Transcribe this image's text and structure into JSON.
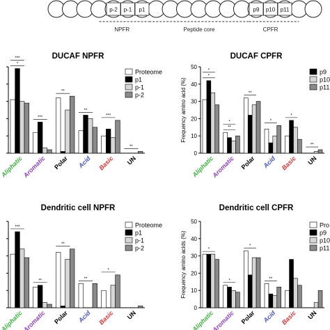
{
  "diagram": {
    "cells": [
      "",
      "",
      "",
      "",
      "p-2",
      "p-1",
      "p1",
      "",
      "",
      "",
      "",
      "",
      "",
      "",
      "p9",
      "p10",
      "p11",
      "",
      ""
    ],
    "regions": [
      "NPFR",
      "Peptide core",
      "CPFR"
    ]
  },
  "colors": {
    "proteome": "#ffffff",
    "p1": "#000000",
    "pm1": "#d6d6d6",
    "pm2": "#8a8a8a",
    "aliphatic": "#3db13d",
    "aromatic": "#8e3fc0",
    "polar": "#000000",
    "acid": "#4a55c4",
    "basic": "#d63232",
    "un": "#000000"
  },
  "chart_data": [
    {
      "type": "bar",
      "title": "DUCAF NPFR",
      "ylabel": "",
      "ylim": [
        0,
        50
      ],
      "categories": [
        "Aliphatic",
        "Aromatic",
        "Polar",
        "Acid",
        "Basic",
        "UN"
      ],
      "legend": [
        "Proteome",
        "p1",
        "p-1",
        "p-2"
      ],
      "series": [
        {
          "name": "Proteome",
          "values": [
            31,
            12,
            32,
            13,
            10,
            0
          ]
        },
        {
          "name": "p1",
          "values": [
            49,
            18,
            1,
            22,
            14,
            0
          ]
        },
        {
          "name": "p-1",
          "values": [
            30,
            3,
            25,
            20,
            9,
            0
          ]
        },
        {
          "name": "p-2",
          "values": [
            29,
            2,
            33,
            15,
            19,
            1
          ]
        }
      ],
      "annotations": [
        "*",
        "***",
        "**",
        "**",
        "***",
        "**",
        "***"
      ]
    },
    {
      "type": "bar",
      "title": "DUCAF CPFR",
      "ylabel": "Frequency amino acid (%)",
      "ylim": [
        0,
        50
      ],
      "categories": [
        "Aliphatic",
        "Aromatic",
        "Polar",
        "Acid",
        "Basic",
        "UN"
      ],
      "legend": [
        "p9",
        "p10",
        "p11"
      ],
      "series": [
        {
          "name": "Proteome",
          "values": [
            31,
            12,
            32,
            14,
            10,
            0
          ]
        },
        {
          "name": "p9",
          "values": [
            42,
            9,
            22,
            6,
            19,
            0
          ]
        },
        {
          "name": "p10",
          "values": [
            35,
            7,
            28,
            10,
            15,
            1
          ]
        },
        {
          "name": "p11",
          "values": [
            28,
            10,
            30,
            16,
            8,
            2
          ]
        }
      ],
      "annotations": [
        "*",
        "**",
        "**",
        "*",
        "*",
        "**",
        "*",
        "*"
      ]
    },
    {
      "type": "bar",
      "title": "Dendritic cell NPFR",
      "ylabel": "",
      "ylim": [
        0,
        50
      ],
      "categories": [
        "Aliphatic",
        "Aromatic",
        "Polar",
        "Acid",
        "Basic",
        "UN"
      ],
      "legend": [
        "Proteome",
        "p1",
        "p-1",
        "p-2"
      ],
      "series": [
        {
          "name": "Proteome",
          "values": [
            31,
            12,
            32,
            14,
            10,
            0
          ]
        },
        {
          "name": "p1",
          "values": [
            44,
            13,
            1,
            0,
            0,
            0
          ]
        },
        {
          "name": "p-1",
          "values": [
            34,
            3,
            28,
            0,
            13,
            0
          ]
        },
        {
          "name": "p-2",
          "values": [
            29,
            2,
            34,
            14,
            19,
            1
          ]
        }
      ],
      "annotations": [
        "***",
        "**",
        "**",
        "**",
        "*"
      ]
    },
    {
      "type": "bar",
      "title": "Dendritic cell CPFR",
      "ylabel": "Frequency amino acids (%)",
      "ylim": [
        0,
        50
      ],
      "categories": [
        "Aliphatic",
        "Aromatic",
        "Polar",
        "Acid",
        "Basic",
        "UN"
      ],
      "legend": [
        "Pro",
        "p9",
        "p10",
        "p11"
      ],
      "series": [
        {
          "name": "Pro",
          "values": [
            31,
            13,
            33,
            14,
            10,
            0
          ]
        },
        {
          "name": "p9",
          "values": [
            31,
            12,
            19,
            8,
            28,
            0
          ]
        },
        {
          "name": "p10",
          "values": [
            31,
            10,
            29,
            7,
            17,
            3
          ]
        },
        {
          "name": "p11",
          "values": [
            28,
            9,
            29,
            12,
            13,
            10
          ]
        }
      ],
      "annotations": [
        "*",
        "*",
        "*",
        "**"
      ]
    }
  ]
}
